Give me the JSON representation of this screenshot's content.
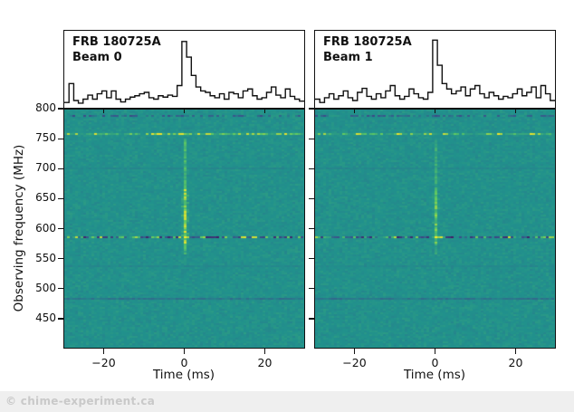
{
  "watermark": "© chime-experiment.ca",
  "colors": {
    "background": "#ffffff",
    "line": "#111111",
    "waterfall_base_teal": "#21918c",
    "watermark_text": "#c9c9c9",
    "footer_band": "#efefef",
    "viridis_stops": [
      "#440154",
      "#3b528b",
      "#21918c",
      "#5ec962",
      "#fde725"
    ]
  },
  "axes": {
    "ylabel": "Observing frequency (MHz)",
    "xlabel": "Time (ms)",
    "x_range": [
      -30,
      30
    ],
    "y_range": [
      400,
      800
    ],
    "ytick_values": [
      800,
      750,
      700,
      650,
      600,
      550,
      500,
      450
    ],
    "ytick_labels": [
      "800",
      "750",
      "700",
      "650",
      "600",
      "550",
      "500",
      "450"
    ],
    "xtick_values": [
      -20,
      0,
      20
    ],
    "xtick_labels": [
      "−20",
      "0",
      "20"
    ]
  },
  "chart_data": [
    {
      "type": "line",
      "title": "FRB 180725A",
      "subtitle": "Beam 0",
      "profile": {
        "style": "step",
        "x_range_ms": [
          -30,
          30
        ],
        "values": [
          0.05,
          0.33,
          0.08,
          0.04,
          0.1,
          0.16,
          0.1,
          0.18,
          0.22,
          0.12,
          0.22,
          0.1,
          0.06,
          0.1,
          0.13,
          0.15,
          0.18,
          0.2,
          0.12,
          0.1,
          0.15,
          0.13,
          0.16,
          0.14,
          0.3,
          0.95,
          0.72,
          0.45,
          0.28,
          0.22,
          0.2,
          0.15,
          0.12,
          0.18,
          0.1,
          0.2,
          0.18,
          0.12,
          0.22,
          0.25,
          0.15,
          0.1,
          0.12,
          0.2,
          0.28,
          0.16,
          0.12,
          0.25,
          0.14,
          0.1,
          0.07
        ]
      },
      "waterfall": {
        "type": "heatmap",
        "colormap": "viridis",
        "time_range_ms": [
          -30,
          30
        ],
        "freq_range_mhz": [
          400,
          800
        ],
        "burst": {
          "time_ms": 0,
          "freq_span": [
            555,
            750
          ],
          "peak_span": [
            575,
            665
          ],
          "strength": 1.0
        },
        "rfi_lines": [
          {
            "freq": 788,
            "kind": "dark-speckle"
          },
          {
            "freq": 758,
            "kind": "bright-speckle"
          },
          {
            "freq": 700,
            "kind": "faint-dark"
          },
          {
            "freq": 585,
            "kind": "mixed-bright-dark"
          },
          {
            "freq": 536,
            "kind": "faint-dark"
          },
          {
            "freq": 480,
            "kind": "dark"
          }
        ],
        "seed": 42
      }
    },
    {
      "type": "line",
      "title": "FRB 180725A",
      "subtitle": "Beam 1",
      "profile": {
        "style": "step",
        "x_range_ms": [
          -30,
          30
        ],
        "values": [
          0.1,
          0.05,
          0.12,
          0.18,
          0.1,
          0.15,
          0.22,
          0.12,
          0.08,
          0.2,
          0.26,
          0.14,
          0.1,
          0.18,
          0.12,
          0.22,
          0.3,
          0.15,
          0.1,
          0.14,
          0.25,
          0.18,
          0.12,
          0.1,
          0.2,
          0.97,
          0.6,
          0.33,
          0.25,
          0.18,
          0.22,
          0.28,
          0.15,
          0.25,
          0.3,
          0.18,
          0.12,
          0.2,
          0.15,
          0.1,
          0.14,
          0.12,
          0.18,
          0.25,
          0.15,
          0.2,
          0.28,
          0.12,
          0.3,
          0.18,
          0.08
        ]
      },
      "waterfall": {
        "type": "heatmap",
        "colormap": "viridis",
        "time_range_ms": [
          -30,
          30
        ],
        "freq_range_mhz": [
          400,
          800
        ],
        "burst": {
          "time_ms": 0,
          "freq_span": [
            555,
            750
          ],
          "peak_span": [
            575,
            665
          ],
          "strength": 0.9
        },
        "rfi_lines": [
          {
            "freq": 788,
            "kind": "dark-speckle"
          },
          {
            "freq": 758,
            "kind": "bright-speckle"
          },
          {
            "freq": 700,
            "kind": "faint-dark"
          },
          {
            "freq": 585,
            "kind": "mixed-bright-dark"
          },
          {
            "freq": 536,
            "kind": "faint-dark"
          },
          {
            "freq": 480,
            "kind": "dark"
          }
        ],
        "seed": 1337
      }
    }
  ],
  "layout_note": "left panel x=70, right panel x=347, panel width 267, profile y=33 h=87, waterfall y=120 h=265"
}
